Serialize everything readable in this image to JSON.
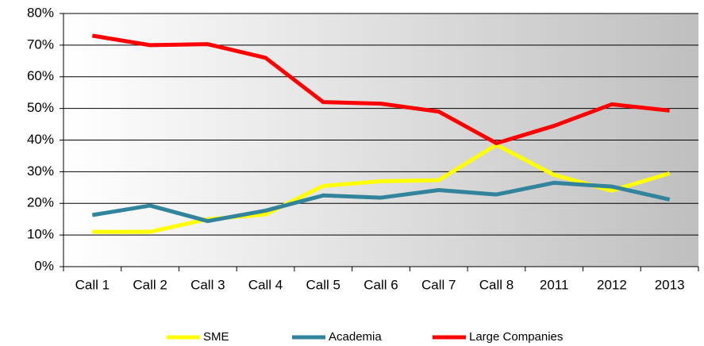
{
  "chart_data": {
    "type": "line",
    "categories": [
      "Call 1",
      "Call 2",
      "Call 3",
      "Call 4",
      "Call 5",
      "Call 6",
      "Call 7",
      "Call 8",
      "2011",
      "2012",
      "2013"
    ],
    "series": [
      {
        "name": "SME",
        "color": "#ffff00",
        "values": [
          11,
          11,
          15,
          16.5,
          25.5,
          27,
          27.3,
          38.5,
          29,
          24,
          29.5
        ]
      },
      {
        "name": "Academia",
        "color": "#31849b",
        "values": [
          16.3,
          19.3,
          14.4,
          17.7,
          22.5,
          21.8,
          24.2,
          22.8,
          26.5,
          25.3,
          21.2
        ]
      },
      {
        "name": "Large Companies",
        "color": "#ff0000",
        "values": [
          73,
          70,
          70.3,
          66,
          52,
          51.5,
          49,
          39,
          44.5,
          51.3,
          49.3
        ]
      }
    ],
    "ylim": [
      0,
      80
    ],
    "yticks": [
      {
        "value": 0,
        "label": "0%"
      },
      {
        "value": 10,
        "label": "10%"
      },
      {
        "value": 20,
        "label": "20%"
      },
      {
        "value": 30,
        "label": "30%"
      },
      {
        "value": 40,
        "label": "40%"
      },
      {
        "value": 50,
        "label": "50%"
      },
      {
        "value": 60,
        "label": "60%"
      },
      {
        "value": 70,
        "label": "70%"
      },
      {
        "value": 80,
        "label": "80%"
      }
    ],
    "grid": true,
    "legend": "bottom"
  }
}
